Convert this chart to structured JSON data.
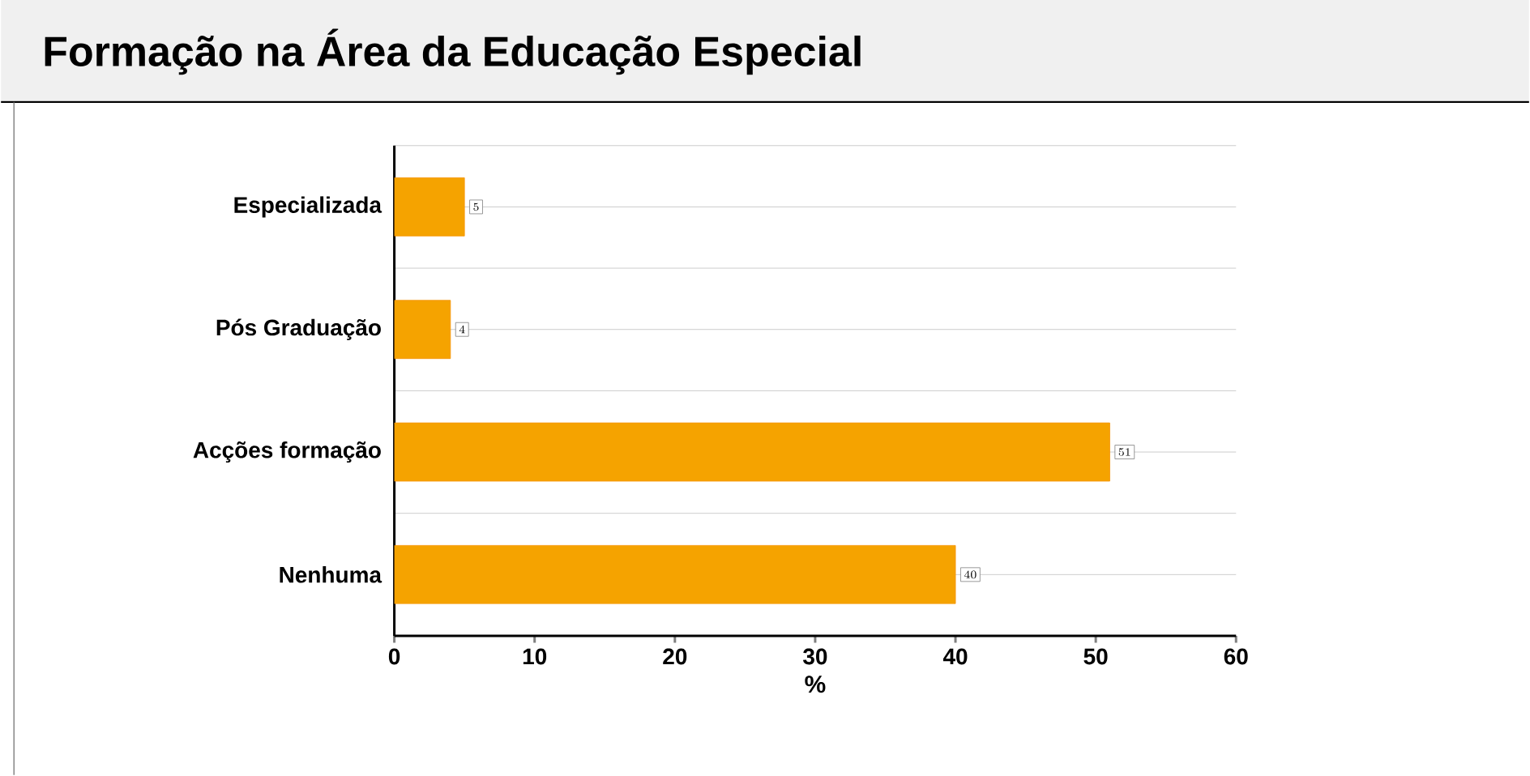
{
  "chart_data": {
    "type": "bar",
    "orientation": "horizontal",
    "title": "Formação na Área da Educação Especial",
    "xlabel": "%",
    "categories": [
      "Especializada",
      "Pós Graduação",
      "Acções formação",
      "Nenhuma"
    ],
    "values": [
      5,
      4,
      51,
      40
    ],
    "color": "#f5a300",
    "xlim": [
      0,
      60
    ],
    "xticks": [
      0,
      10,
      20,
      30,
      40,
      50,
      60
    ],
    "grid": "y",
    "data_labels": true
  }
}
